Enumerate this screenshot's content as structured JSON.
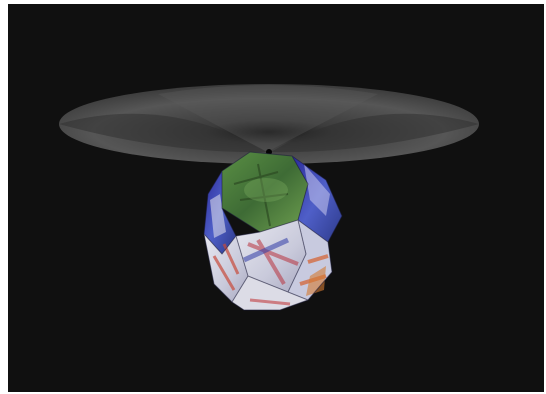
{
  "scene": {
    "background_color": "#101010",
    "frame_color": "#ffffff",
    "objects": [
      {
        "name": "disc",
        "color": "#4a4a4a"
      },
      {
        "name": "dodecahedron",
        "colors": [
          "#4a7a3a",
          "#3a3ab0",
          "#d9dbe8",
          "#c84a3a",
          "#6a9a48"
        ]
      }
    ]
  }
}
